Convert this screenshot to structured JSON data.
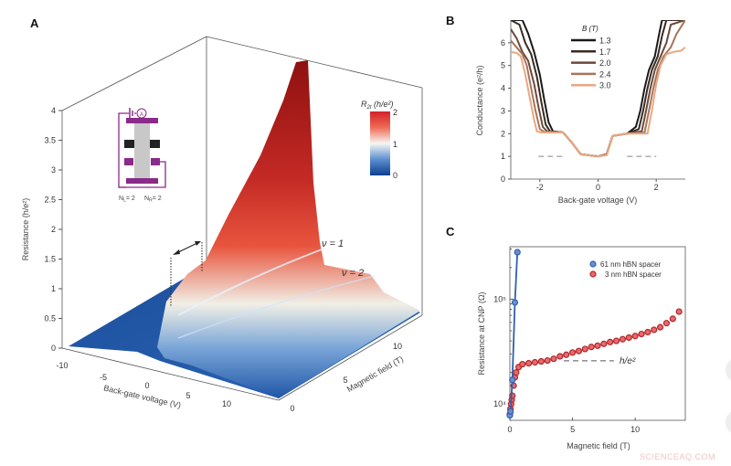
{
  "panels": {
    "a": {
      "label": "A"
    },
    "b": {
      "label": "B"
    },
    "c": {
      "label": "C"
    }
  },
  "watermark": "SCIENCEAQ.COM",
  "chart_data": [
    {
      "panel": "A",
      "type": "surface",
      "ylabel": "Resistance (h/e²)",
      "xlabel": "Back-gate voltage (V)",
      "zlabel": "Magnetic field (T)",
      "yticks": [
        "0",
        "0.5",
        "1",
        "1.5",
        "2",
        "2.5",
        "3",
        "3.5",
        "4"
      ],
      "xticks": [
        "-10",
        "-5",
        "0",
        "5",
        "10"
      ],
      "zticks": [
        "0",
        "5",
        "10"
      ],
      "ylim": [
        0,
        4
      ],
      "colorbar": {
        "title_main": "R",
        "title_sub": "2t",
        "title_unit": " (h/e²)",
        "ticks": [
          "2",
          "1",
          "0"
        ],
        "range": [
          0,
          2
        ],
        "colors": [
          "#0d3f8f",
          "#3a78c4",
          "#f4f4f0",
          "#e8403a",
          "#8e1010"
        ]
      },
      "annotations": [
        "ν = 1",
        "ν = 2"
      ],
      "inset": {
        "left": "N",
        "left_sub": "L",
        "left_val": "= 2",
        "right": "N",
        "right_sub": "R",
        "right_val": "= 2",
        "meter": "A"
      }
    },
    {
      "panel": "B",
      "type": "line",
      "xlabel": "Back-gate voltage (V)",
      "ylabel": "Conductance (e²/h)",
      "xlim": [
        -3,
        3
      ],
      "ylim": [
        0,
        7
      ],
      "xticks": [
        -2,
        0,
        2
      ],
      "yticks": [
        0,
        1,
        2,
        3,
        4,
        5,
        6
      ],
      "legend_title": "B (T)",
      "legend_placement": "top-center",
      "reference_line": {
        "y": 1,
        "segments": [
          [
            -2.05,
            -1.2
          ],
          [
            1.0,
            2.0
          ]
        ]
      },
      "series": [
        {
          "name": "1.3",
          "color": "#1a1a1a",
          "x": [
            -3,
            -2.6,
            -2.4,
            -2.2,
            -2.0,
            -1.85,
            -1.7,
            -1.55,
            -1.2,
            -0.9,
            -0.6,
            0,
            0.3,
            0.5,
            1.0,
            1.3,
            1.45,
            1.6,
            1.75,
            1.95,
            2.1,
            2.2,
            3
          ],
          "y": [
            7,
            7,
            6.4,
            5.6,
            4.6,
            3.5,
            2.5,
            2.1,
            2.05,
            1.6,
            1.1,
            1.0,
            1.1,
            1.9,
            2.0,
            2.3,
            3.0,
            4.0,
            4.8,
            5.4,
            6.4,
            7,
            7
          ]
        },
        {
          "name": "1.7",
          "color": "#3a2a22",
          "x": [
            -3,
            -2.7,
            -2.5,
            -2.3,
            -2.1,
            -1.95,
            -1.8,
            -1.65,
            -1.2,
            -0.9,
            -0.6,
            0,
            0.3,
            0.5,
            1.0,
            1.4,
            1.55,
            1.7,
            1.85,
            2.05,
            2.2,
            2.35,
            3
          ],
          "y": [
            7,
            6.8,
            6.0,
            5.5,
            4.5,
            3.4,
            2.4,
            2.1,
            2.05,
            1.6,
            1.1,
            1.0,
            1.1,
            1.9,
            2.0,
            2.2,
            3.0,
            4.0,
            4.8,
            5.4,
            6.3,
            7,
            7
          ]
        },
        {
          "name": "2.0",
          "color": "#6a4a3a",
          "x": [
            -3,
            -2.8,
            -2.6,
            -2.4,
            -2.2,
            -2.05,
            -1.9,
            -1.75,
            -1.2,
            -0.9,
            -0.6,
            0,
            0.3,
            0.5,
            1.0,
            1.5,
            1.65,
            1.8,
            1.95,
            2.15,
            2.35,
            2.5,
            3
          ],
          "y": [
            6.6,
            6.2,
            5.6,
            5.2,
            4.2,
            3.2,
            2.3,
            2.1,
            2.05,
            1.6,
            1.1,
            1.0,
            1.1,
            1.9,
            2.0,
            2.1,
            3.0,
            4.0,
            4.8,
            5.4,
            6.0,
            6.8,
            7
          ]
        },
        {
          "name": "2.4",
          "color": "#a8745a",
          "x": [
            -3,
            -2.8,
            -2.6,
            -2.45,
            -2.3,
            -2.15,
            -2.0,
            -1.85,
            -1.2,
            -0.9,
            -0.6,
            0,
            0.3,
            0.5,
            1.0,
            1.6,
            1.75,
            1.9,
            2.05,
            2.25,
            2.5,
            2.7,
            3
          ],
          "y": [
            6.1,
            5.8,
            5.5,
            5.0,
            4.0,
            3.0,
            2.2,
            2.08,
            2.05,
            1.6,
            1.1,
            1.0,
            1.1,
            1.9,
            2.0,
            2.05,
            3.0,
            4.0,
            4.8,
            5.4,
            5.8,
            6.4,
            7
          ]
        },
        {
          "name": "3.0",
          "color": "#e8a882",
          "x": [
            -3,
            -2.8,
            -2.65,
            -2.5,
            -2.35,
            -2.2,
            -2.1,
            -1.95,
            -1.2,
            -0.9,
            -0.6,
            0,
            0.3,
            0.5,
            1.0,
            1.7,
            1.85,
            2.0,
            2.15,
            2.35,
            2.6,
            2.85,
            3
          ],
          "y": [
            5.6,
            5.55,
            5.4,
            4.6,
            3.6,
            2.6,
            2.1,
            2.05,
            2.05,
            1.6,
            1.1,
            1.0,
            1.05,
            1.9,
            2.0,
            2.0,
            3.0,
            4.2,
            5.0,
            5.5,
            5.6,
            5.65,
            5.8
          ]
        }
      ]
    },
    {
      "panel": "C",
      "type": "scatter",
      "xlabel": "Magnetic field (T)",
      "ylabel": "Resistance at CNP (Ω)",
      "xlim": [
        0,
        14
      ],
      "ylim": [
        7000,
        316000
      ],
      "yscale": "log",
      "xticks": [
        0,
        5,
        10
      ],
      "yticks": [
        {
          "value": 10000,
          "label": "10⁴"
        },
        {
          "value": 100000,
          "label": "10⁵"
        }
      ],
      "legend_placement": "top-right",
      "reference": {
        "label": "h/e²",
        "y": 25813,
        "x_range": [
          4.3,
          8.3
        ]
      },
      "series": [
        {
          "name": "61 nm hBN spacer",
          "color": "#2f5fae",
          "x": [
            0,
            0.05,
            0.2,
            0.4,
            0.6
          ],
          "y": [
            7800,
            8500,
            17000,
            93000,
            280000
          ]
        },
        {
          "name": "3 nm hBN spacer",
          "color": "#b0282e",
          "x": [
            0,
            0.05,
            0.1,
            0.15,
            0.2,
            0.3,
            0.4,
            0.5,
            0.7,
            1,
            1.5,
            2,
            2.5,
            3,
            3.5,
            4,
            4.5,
            5,
            5.5,
            6,
            6.5,
            7,
            7.5,
            8,
            8.5,
            9,
            9.5,
            10,
            10.5,
            11,
            11.5,
            12,
            12.5,
            13,
            13.5
          ],
          "y": [
            8000,
            9000,
            10000,
            11000,
            12000,
            15000,
            18000,
            20000,
            22500,
            24000,
            24500,
            25000,
            25500,
            26000,
            27000,
            28500,
            29500,
            31000,
            32000,
            33500,
            35000,
            36000,
            37500,
            39000,
            40000,
            41500,
            43000,
            44500,
            46500,
            48500,
            51000,
            54000,
            59000,
            65000,
            76000
          ]
        }
      ]
    }
  ]
}
